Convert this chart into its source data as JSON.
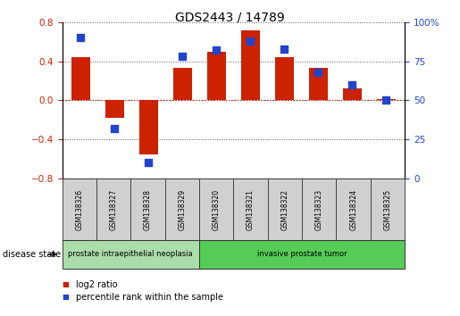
{
  "title": "GDS2443 / 14789",
  "samples": [
    "GSM138326",
    "GSM138327",
    "GSM138328",
    "GSM138329",
    "GSM138320",
    "GSM138321",
    "GSM138322",
    "GSM138323",
    "GSM138324",
    "GSM138325"
  ],
  "log2_ratio": [
    0.44,
    -0.18,
    -0.55,
    0.33,
    0.5,
    0.72,
    0.44,
    0.33,
    0.12,
    0.01
  ],
  "percentile_rank": [
    90,
    32,
    10,
    78,
    82,
    88,
    83,
    68,
    60,
    50
  ],
  "bar_color": "#cc2200",
  "dot_color": "#2244cc",
  "ylim_left": [
    -0.8,
    0.8
  ],
  "ylim_right": [
    0,
    100
  ],
  "yticks_left": [
    -0.8,
    -0.4,
    0.0,
    0.4,
    0.8
  ],
  "yticks_right": [
    0,
    25,
    50,
    75,
    100
  ],
  "groups": [
    {
      "label": "prostate intraepithelial neoplasia",
      "samples": 4,
      "color": "#aaddaa"
    },
    {
      "label": "invasive prostate tumor",
      "samples": 6,
      "color": "#55cc55"
    }
  ],
  "disease_state_label": "disease state",
  "legend_log2": "log2 ratio",
  "legend_pct": "percentile rank within the sample",
  "bg_color": "#ffffff",
  "plot_bg": "#ffffff",
  "grid_color": "#555555",
  "sample_box_color": "#d0d0d0",
  "bar_width": 0.55
}
